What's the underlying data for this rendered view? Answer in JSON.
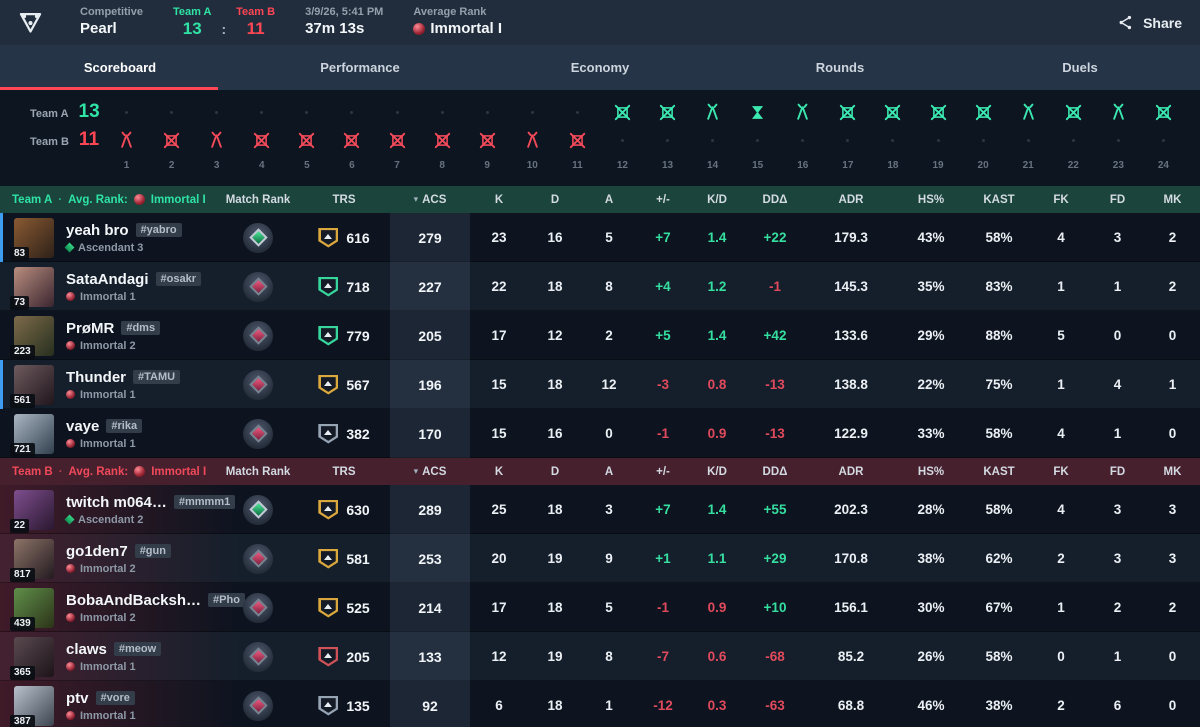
{
  "header": {
    "mode": "Competitive",
    "map": "Pearl",
    "team_a_label": "Team A",
    "team_a_score": "13",
    "colon": ":",
    "team_b_label": "Team B",
    "team_b_score": "11",
    "datetime": "3/9/26, 5:41 PM",
    "duration": "37m 13s",
    "avg_rank_label": "Average Rank",
    "avg_rank": "Immortal I",
    "share_label": "Share"
  },
  "colors": {
    "accent_red": "#ff4655",
    "accent_teal": "#2fe3a5",
    "positive": "#35dfa0",
    "negative": "#e04a5c",
    "team_a_header_bg": "#1a443c",
    "team_b_header_bg": "#47202e",
    "topbar_bg": "#212d3c",
    "tabbar_bg": "#263447",
    "party_indicator": "#3e9df0"
  },
  "tabs": [
    {
      "label": "Scoreboard",
      "active": true
    },
    {
      "label": "Performance",
      "active": false
    },
    {
      "label": "Economy",
      "active": false
    },
    {
      "label": "Rounds",
      "active": false
    },
    {
      "label": "Duels",
      "active": false
    }
  ],
  "timeline": {
    "team_a_label": "Team A",
    "team_a_score": "13",
    "team_b_label": "Team B",
    "team_b_score": "11",
    "rounds": [
      {
        "n": "1",
        "winner": "B",
        "result": "defuse"
      },
      {
        "n": "2",
        "winner": "B",
        "result": "elim"
      },
      {
        "n": "3",
        "winner": "B",
        "result": "defuse"
      },
      {
        "n": "4",
        "winner": "B",
        "result": "elim"
      },
      {
        "n": "5",
        "winner": "B",
        "result": "elim"
      },
      {
        "n": "6",
        "winner": "B",
        "result": "elim"
      },
      {
        "n": "7",
        "winner": "B",
        "result": "elim"
      },
      {
        "n": "8",
        "winner": "B",
        "result": "elim"
      },
      {
        "n": "9",
        "winner": "B",
        "result": "elim"
      },
      {
        "n": "10",
        "winner": "B",
        "result": "defuse"
      },
      {
        "n": "11",
        "winner": "B",
        "result": "elim"
      },
      {
        "n": "12",
        "winner": "A",
        "result": "elim"
      },
      {
        "n": "13",
        "winner": "A",
        "result": "elim"
      },
      {
        "n": "14",
        "winner": "A",
        "result": "defuse"
      },
      {
        "n": "15",
        "winner": "A",
        "result": "time"
      },
      {
        "n": "16",
        "winner": "A",
        "result": "defuse"
      },
      {
        "n": "17",
        "winner": "A",
        "result": "elim"
      },
      {
        "n": "18",
        "winner": "A",
        "result": "elim"
      },
      {
        "n": "19",
        "winner": "A",
        "result": "elim"
      },
      {
        "n": "20",
        "winner": "A",
        "result": "elim"
      },
      {
        "n": "21",
        "winner": "A",
        "result": "defuse"
      },
      {
        "n": "22",
        "winner": "A",
        "result": "elim"
      },
      {
        "n": "23",
        "winner": "A",
        "result": "defuse"
      },
      {
        "n": "24",
        "winner": "A",
        "result": "elim"
      }
    ]
  },
  "table": {
    "columns": [
      "Match Rank",
      "TRS",
      "ACS",
      "K",
      "D",
      "A",
      "+/-",
      "K/D",
      "DDΔ",
      "ADR",
      "HS%",
      "KAST",
      "FK",
      "FD",
      "MK"
    ],
    "teams": [
      {
        "id": "team-a",
        "label": "Team A",
        "avg_rank_label": "Avg. Rank:",
        "avg_rank": "Immortal I",
        "players": [
          {
            "name": "yeah bro",
            "tag": "#yabro",
            "level": "83",
            "rank": "Ascendant 3",
            "rank_tier": "ascendant",
            "match_rank_tier": "ascendant",
            "party": true,
            "avatar": [
              "#8a5a33",
              "#2e2118"
            ],
            "trs_tier": "gold",
            "trs": "616",
            "acs": "279",
            "k": "23",
            "d": "16",
            "a": "5",
            "pm": "+7",
            "kd": "1.4",
            "dd": "+22",
            "adr": "179.3",
            "hs": "43%",
            "kast": "58%",
            "fk": "4",
            "fd": "3",
            "mk": "2"
          },
          {
            "name": "SataAndagi",
            "tag": "#osakr",
            "level": "73",
            "rank": "Immortal 1",
            "rank_tier": "immortal",
            "match_rank_tier": "immortal",
            "party": false,
            "avatar": [
              "#b98d7e",
              "#3a2630"
            ],
            "trs_tier": "green",
            "trs": "718",
            "acs": "227",
            "k": "22",
            "d": "18",
            "a": "8",
            "pm": "+4",
            "kd": "1.2",
            "dd": "-1",
            "adr": "145.3",
            "hs": "35%",
            "kast": "83%",
            "fk": "1",
            "fd": "1",
            "mk": "2"
          },
          {
            "name": "PrøMR",
            "tag": "#dms",
            "level": "223",
            "rank": "Immortal 2",
            "rank_tier": "immortal",
            "match_rank_tier": "immortal",
            "party": false,
            "avatar": [
              "#7d6a4a",
              "#27301f"
            ],
            "trs_tier": "green",
            "trs": "779",
            "acs": "205",
            "k": "17",
            "d": "12",
            "a": "2",
            "pm": "+5",
            "kd": "1.4",
            "dd": "+42",
            "adr": "133.6",
            "hs": "29%",
            "kast": "88%",
            "fk": "5",
            "fd": "0",
            "mk": "0"
          },
          {
            "name": "Thunder",
            "tag": "#TAMU",
            "level": "561",
            "rank": "Immortal 1",
            "rank_tier": "immortal",
            "match_rank_tier": "immortal",
            "party": true,
            "avatar": [
              "#6d5a5e",
              "#20161c"
            ],
            "trs_tier": "gold",
            "trs": "567",
            "acs": "196",
            "k": "15",
            "d": "18",
            "a": "12",
            "pm": "-3",
            "kd": "0.8",
            "dd": "-13",
            "adr": "138.8",
            "hs": "22%",
            "kast": "75%",
            "fk": "1",
            "fd": "4",
            "mk": "1"
          },
          {
            "name": "vaye",
            "tag": "#rika",
            "level": "721",
            "rank": "Immortal 1",
            "rank_tier": "immortal",
            "match_rank_tier": "immortal",
            "party": false,
            "avatar": [
              "#aab6c4",
              "#32404e"
            ],
            "trs_tier": "silver",
            "trs": "382",
            "acs": "170",
            "k": "15",
            "d": "16",
            "a": "0",
            "pm": "-1",
            "kd": "0.9",
            "dd": "-13",
            "adr": "122.9",
            "hs": "33%",
            "kast": "58%",
            "fk": "4",
            "fd": "1",
            "mk": "0"
          }
        ]
      },
      {
        "id": "team-b",
        "label": "Team B",
        "avg_rank_label": "Avg. Rank:",
        "avg_rank": "Immortal I",
        "players": [
          {
            "name": "twitch m064…",
            "tag": "#mmmm1",
            "level": "22",
            "rank": "Ascendant 2",
            "rank_tier": "ascendant",
            "match_rank_tier": "ascendant",
            "party": false,
            "avatar": [
              "#7e4e8e",
              "#2a1830"
            ],
            "trs_tier": "gold",
            "trs": "630",
            "acs": "289",
            "k": "25",
            "d": "18",
            "a": "3",
            "pm": "+7",
            "kd": "1.4",
            "dd": "+55",
            "adr": "202.3",
            "hs": "28%",
            "kast": "58%",
            "fk": "4",
            "fd": "3",
            "mk": "3"
          },
          {
            "name": "go1den7",
            "tag": "#gun",
            "level": "817",
            "rank": "Immortal 2",
            "rank_tier": "immortal",
            "match_rank_tier": "immortal",
            "party": false,
            "avatar": [
              "#8d7468",
              "#221a20"
            ],
            "trs_tier": "gold",
            "trs": "581",
            "acs": "253",
            "k": "20",
            "d": "19",
            "a": "9",
            "pm": "+1",
            "kd": "1.1",
            "dd": "+29",
            "adr": "170.8",
            "hs": "38%",
            "kast": "62%",
            "fk": "2",
            "fd": "3",
            "mk": "3"
          },
          {
            "name": "BobaAndBacksh…",
            "tag": "#Pho",
            "level": "439",
            "rank": "Immortal 2",
            "rank_tier": "immortal",
            "match_rank_tier": "immortal",
            "party": false,
            "avatar": [
              "#5f8f4a",
              "#2c3318"
            ],
            "trs_tier": "gold",
            "trs": "525",
            "acs": "214",
            "k": "17",
            "d": "18",
            "a": "5",
            "pm": "-1",
            "kd": "0.9",
            "dd": "+10",
            "adr": "156.1",
            "hs": "30%",
            "kast": "67%",
            "fk": "1",
            "fd": "2",
            "mk": "2"
          },
          {
            "name": "claws",
            "tag": "#meow",
            "level": "365",
            "rank": "Immortal 1",
            "rank_tier": "immortal",
            "match_rank_tier": "immortal",
            "party": false,
            "avatar": [
              "#5a4a50",
              "#1c1318"
            ],
            "trs_tier": "red",
            "trs": "205",
            "acs": "133",
            "k": "12",
            "d": "19",
            "a": "8",
            "pm": "-7",
            "kd": "0.6",
            "dd": "-68",
            "adr": "85.2",
            "hs": "26%",
            "kast": "58%",
            "fk": "0",
            "fd": "1",
            "mk": "0"
          },
          {
            "name": "ptv",
            "tag": "#vore",
            "level": "387",
            "rank": "Immortal 1",
            "rank_tier": "immortal",
            "match_rank_tier": "immortal",
            "party": false,
            "avatar": [
              "#b9c2cc",
              "#3c4450"
            ],
            "trs_tier": "silver",
            "trs": "135",
            "acs": "92",
            "k": "6",
            "d": "18",
            "a": "1",
            "pm": "-12",
            "kd": "0.3",
            "dd": "-63",
            "adr": "68.8",
            "hs": "46%",
            "kast": "38%",
            "fk": "2",
            "fd": "6",
            "mk": "0"
          }
        ]
      }
    ]
  }
}
